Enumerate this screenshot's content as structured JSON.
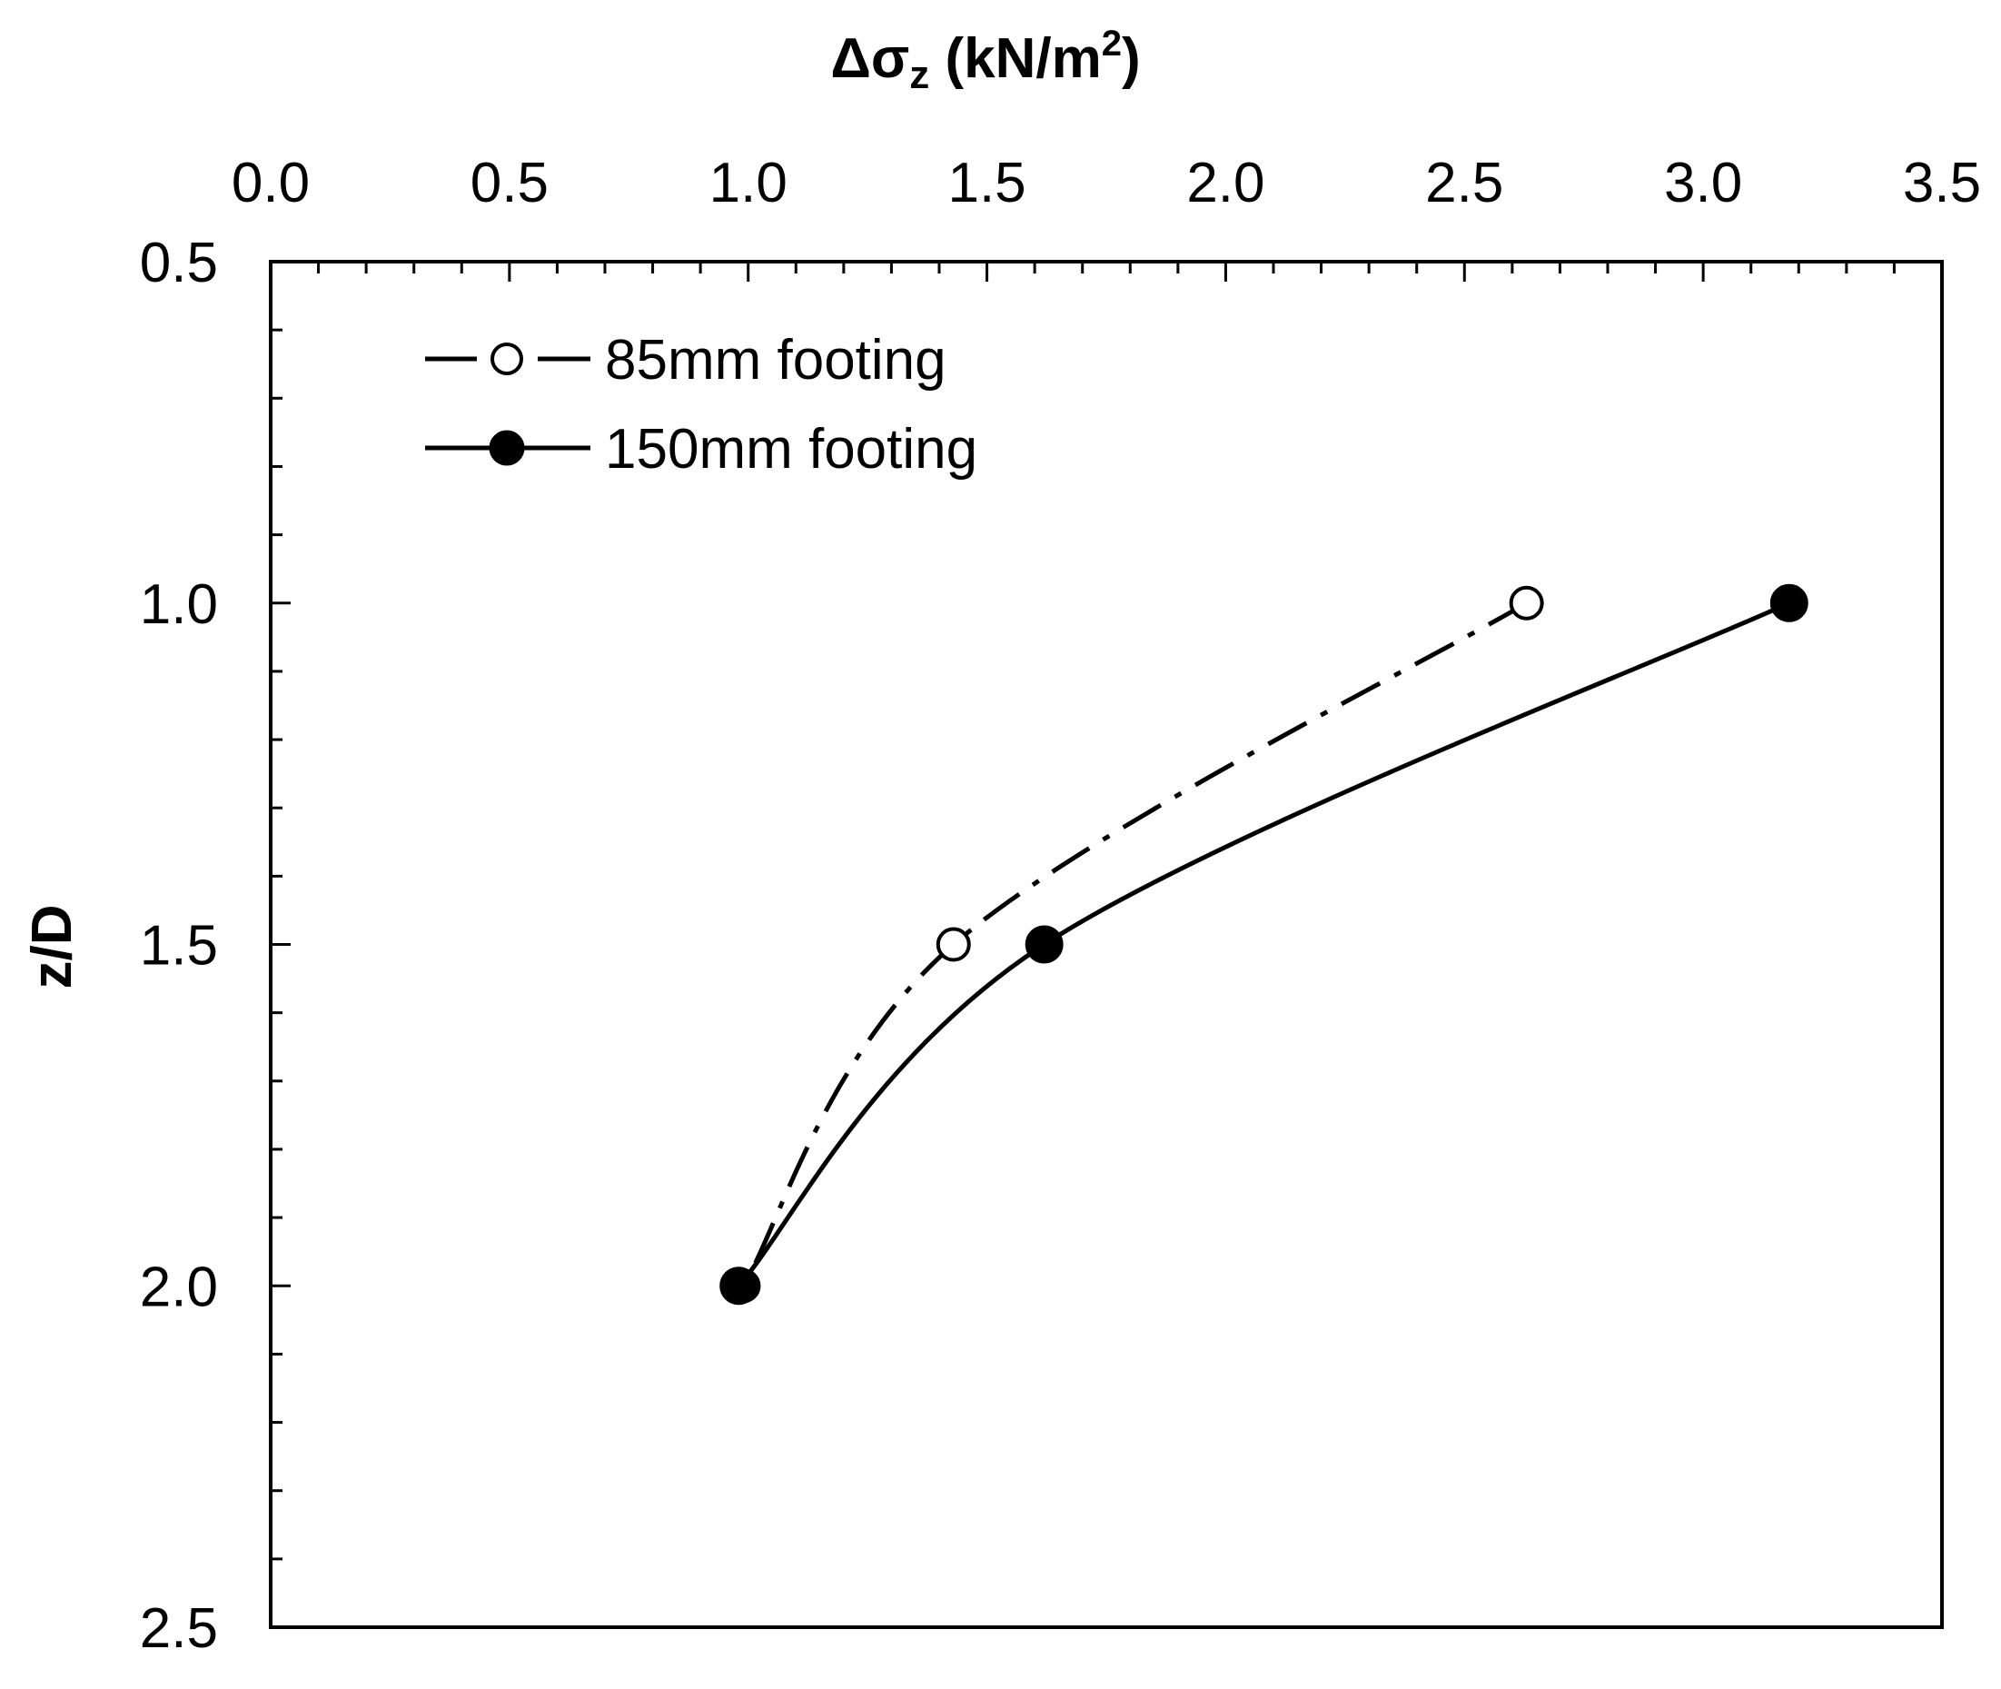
{
  "chart_data": {
    "type": "line",
    "title": "",
    "xlabel": "Δσ",
    "xlabel_subscript": "z",
    "xlabel_suffix": " (kN/m",
    "xlabel_superscript": "2",
    "xlabel_close": ")",
    "ylabel": "z/D",
    "xlim": [
      0.0,
      3.5
    ],
    "ylim": [
      0.5,
      2.5
    ],
    "y_inverted": true,
    "x_axis_position": "top",
    "xticks": [
      "0.0",
      "0.5",
      "1.0",
      "1.5",
      "2.0",
      "2.5",
      "3.0",
      "3.5"
    ],
    "yticks": [
      "0.5",
      "1.0",
      "1.5",
      "2.0",
      "2.5"
    ],
    "grid": false,
    "legend_position": "top-left",
    "series": [
      {
        "name": "85mm footing",
        "marker": "open-circle",
        "line_style": "dash-dot",
        "points": [
          {
            "x": 0.99,
            "y": 2.0
          },
          {
            "x": 1.43,
            "y": 1.5
          },
          {
            "x": 2.63,
            "y": 1.0
          }
        ]
      },
      {
        "name": "150mm footing",
        "marker": "filled-circle",
        "line_style": "solid",
        "points": [
          {
            "x": 0.98,
            "y": 2.0
          },
          {
            "x": 1.62,
            "y": 1.5
          },
          {
            "x": 3.18,
            "y": 1.0
          }
        ]
      }
    ],
    "colors": {
      "line": "#000000",
      "background": "#ffffff",
      "open_marker_fill": "#ffffff"
    }
  }
}
